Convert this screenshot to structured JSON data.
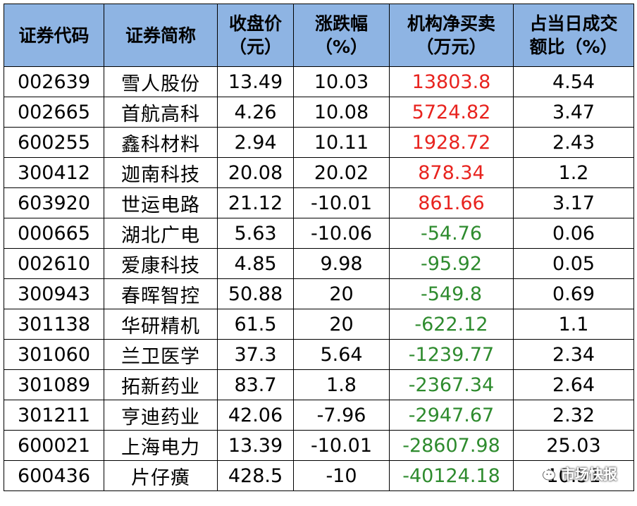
{
  "table": {
    "headers": [
      {
        "line1": "证券代码",
        "line2": ""
      },
      {
        "line1": "证券简称",
        "line2": ""
      },
      {
        "line1": "收盘价",
        "line2": "（元）"
      },
      {
        "line1": "涨跌幅",
        "line2": "（%）"
      },
      {
        "line1": "机构净买卖",
        "line2": "（万元）"
      },
      {
        "line1": "占当日成交",
        "line2": "额比（%）"
      }
    ],
    "rows": [
      {
        "code": "002639",
        "name": "雪人股份",
        "close": "13.49",
        "change": "10.03",
        "net": "13803.8",
        "ratio": "4.54"
      },
      {
        "code": "002665",
        "name": "首航高科",
        "close": "4.26",
        "change": "10.08",
        "net": "5724.82",
        "ratio": "3.47"
      },
      {
        "code": "600255",
        "name": "鑫科材料",
        "close": "2.94",
        "change": "10.11",
        "net": "1928.72",
        "ratio": "2.43"
      },
      {
        "code": "300412",
        "name": "迦南科技",
        "close": "20.08",
        "change": "20.02",
        "net": "878.34",
        "ratio": "1.2"
      },
      {
        "code": "603920",
        "name": "世运电路",
        "close": "21.12",
        "change": "-10.01",
        "net": "861.66",
        "ratio": "3.17"
      },
      {
        "code": "000665",
        "name": "湖北广电",
        "close": "5.63",
        "change": "-10.06",
        "net": "-54.76",
        "ratio": "0.06"
      },
      {
        "code": "002610",
        "name": "爱康科技",
        "close": "4.85",
        "change": "9.98",
        "net": "-95.92",
        "ratio": "0.05"
      },
      {
        "code": "300943",
        "name": "春晖智控",
        "close": "50.88",
        "change": "20",
        "net": "-549.8",
        "ratio": "0.69"
      },
      {
        "code": "301138",
        "name": "华研精机",
        "close": "61.5",
        "change": "20",
        "net": "-622.12",
        "ratio": "1.1"
      },
      {
        "code": "301060",
        "name": "兰卫医学",
        "close": "37.3",
        "change": "5.64",
        "net": "-1239.77",
        "ratio": "2.34"
      },
      {
        "code": "301089",
        "name": "拓新药业",
        "close": "83.7",
        "change": "1.8",
        "net": "-2367.34",
        "ratio": "2.64"
      },
      {
        "code": "301211",
        "name": "亨迪药业",
        "close": "42.06",
        "change": "-7.96",
        "net": "-2947.67",
        "ratio": "2.32"
      },
      {
        "code": "600021",
        "name": "上海电力",
        "close": "13.39",
        "change": "-10.01",
        "net": "-28607.98",
        "ratio": "25.03"
      },
      {
        "code": "600436",
        "name": "片仔癀",
        "close": "428.5",
        "change": "-10",
        "net": "-40124.18",
        "ratio": "10.51"
      }
    ]
  },
  "colors": {
    "header_bg": "#8eb4e3",
    "positive": "#e8231e",
    "negative": "#2e8b2e"
  },
  "watermark": {
    "icon": "wechat-icon",
    "text": "市场快报"
  }
}
